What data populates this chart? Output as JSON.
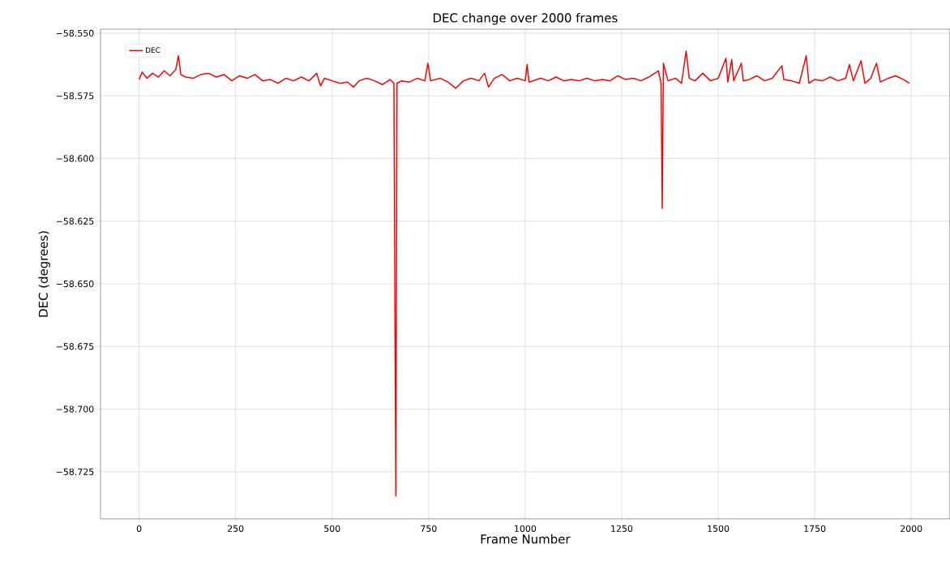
{
  "chart_data": {
    "type": "line",
    "title": "DEC change over 2000 frames",
    "xlabel": "Frame Number",
    "ylabel": "DEC (degrees)",
    "x": [
      0,
      8,
      20,
      35,
      50,
      65,
      80,
      95,
      102,
      108,
      120,
      140,
      160,
      180,
      200,
      220,
      240,
      260,
      280,
      300,
      320,
      340,
      360,
      380,
      400,
      420,
      440,
      460,
      470,
      480,
      500,
      520,
      540,
      555,
      570,
      590,
      610,
      630,
      650,
      660,
      665,
      668,
      680,
      700,
      720,
      740,
      748,
      755,
      780,
      800,
      820,
      840,
      860,
      880,
      895,
      905,
      920,
      940,
      960,
      980,
      1000,
      1005,
      1010,
      1040,
      1060,
      1080,
      1100,
      1120,
      1140,
      1160,
      1180,
      1200,
      1220,
      1240,
      1260,
      1280,
      1300,
      1320,
      1345,
      1352,
      1355,
      1358,
      1370,
      1390,
      1405,
      1417,
      1425,
      1440,
      1460,
      1480,
      1500,
      1520,
      1525,
      1535,
      1540,
      1560,
      1565,
      1580,
      1600,
      1620,
      1640,
      1665,
      1670,
      1690,
      1710,
      1728,
      1735,
      1750,
      1770,
      1790,
      1810,
      1830,
      1840,
      1850,
      1870,
      1880,
      1895,
      1910,
      1920,
      1940,
      1960,
      1980,
      1995
    ],
    "series": [
      {
        "name": "DEC",
        "color": "#ff0000",
        "values": [
          -58.5685,
          -58.5655,
          -58.568,
          -58.566,
          -58.5675,
          -58.565,
          -58.567,
          -58.5645,
          -58.559,
          -58.5665,
          -58.5675,
          -58.568,
          -58.5665,
          -58.566,
          -58.5675,
          -58.5665,
          -58.569,
          -58.567,
          -58.568,
          -58.5665,
          -58.569,
          -58.5685,
          -58.57,
          -58.568,
          -58.569,
          -58.5675,
          -58.569,
          -58.566,
          -58.571,
          -58.568,
          -58.569,
          -58.57,
          -58.5695,
          -58.5715,
          -58.569,
          -58.568,
          -58.569,
          -58.5705,
          -58.5685,
          -58.57,
          -58.7347,
          -58.57,
          -58.569,
          -58.5695,
          -58.568,
          -58.569,
          -58.562,
          -58.569,
          -58.568,
          -58.5695,
          -58.572,
          -58.569,
          -58.568,
          -58.569,
          -58.566,
          -58.5715,
          -58.568,
          -58.5665,
          -58.569,
          -58.568,
          -58.569,
          -58.5625,
          -58.5695,
          -58.568,
          -58.569,
          -58.5675,
          -58.569,
          -58.5685,
          -58.569,
          -58.568,
          -58.569,
          -58.5685,
          -58.569,
          -58.567,
          -58.5685,
          -58.568,
          -58.569,
          -58.5675,
          -58.565,
          -58.57,
          -58.6199,
          -58.562,
          -58.569,
          -58.568,
          -58.57,
          -58.5571,
          -58.568,
          -58.569,
          -58.566,
          -58.569,
          -58.568,
          -58.56,
          -58.5695,
          -58.5605,
          -58.569,
          -58.562,
          -58.569,
          -58.5685,
          -58.567,
          -58.569,
          -58.568,
          -58.563,
          -58.5685,
          -58.569,
          -58.57,
          -58.559,
          -58.57,
          -58.5685,
          -58.569,
          -58.5675,
          -58.569,
          -58.568,
          -58.5625,
          -58.569,
          -58.561,
          -58.57,
          -58.568,
          -58.562,
          -58.5695,
          -58.568,
          -58.567,
          -58.5685,
          -58.57
        ]
      }
    ],
    "xlim": [
      -100,
      2100
    ],
    "ylim": [
      -58.7438,
      -58.5484
    ],
    "xticks": [
      0,
      250,
      500,
      750,
      1000,
      1250,
      1500,
      1750,
      2000
    ],
    "yticks": [
      {
        "value": -58.725,
        "label": "−58.725"
      },
      {
        "value": -58.7,
        "label": "−58.700"
      },
      {
        "value": -58.675,
        "label": "−58.675"
      },
      {
        "value": -58.65,
        "label": "−58.650"
      },
      {
        "value": -58.625,
        "label": "−58.625"
      },
      {
        "value": -58.6,
        "label": "−58.600"
      },
      {
        "value": -58.575,
        "label": "−58.575"
      },
      {
        "value": -58.55,
        "label": "−58.550"
      }
    ],
    "grid": true,
    "legend": "top left",
    "marker": "none",
    "line_style": "solid"
  }
}
